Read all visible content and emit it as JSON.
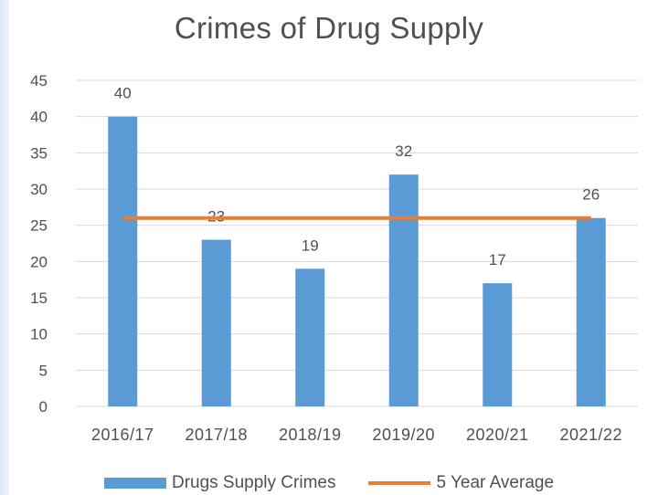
{
  "chart_data": {
    "type": "bar",
    "title": "Crimes of Drug Supply",
    "categories": [
      "2016/17",
      "2017/18",
      "2018/19",
      "2019/20",
      "2020/21",
      "2021/22"
    ],
    "series": [
      {
        "name": "Drugs Supply Crimes",
        "type": "bar",
        "color": "#5b9bd5",
        "values": [
          40,
          23,
          19,
          32,
          17,
          26
        ]
      },
      {
        "name": "5 Year Average",
        "type": "line",
        "color": "#ed7d31",
        "values": [
          26,
          26,
          26,
          26,
          26,
          26
        ]
      }
    ],
    "data_labels": [
      "40",
      "23",
      "19",
      "32",
      "17",
      "26"
    ],
    "y_ticks": [
      "0",
      "5",
      "10",
      "15",
      "20",
      "25",
      "30",
      "35",
      "40",
      "45"
    ],
    "ylim": [
      0,
      45
    ],
    "grid": true,
    "legend_position": "bottom"
  },
  "colors": {
    "grid": "#d9d9d9",
    "text": "#505050"
  }
}
